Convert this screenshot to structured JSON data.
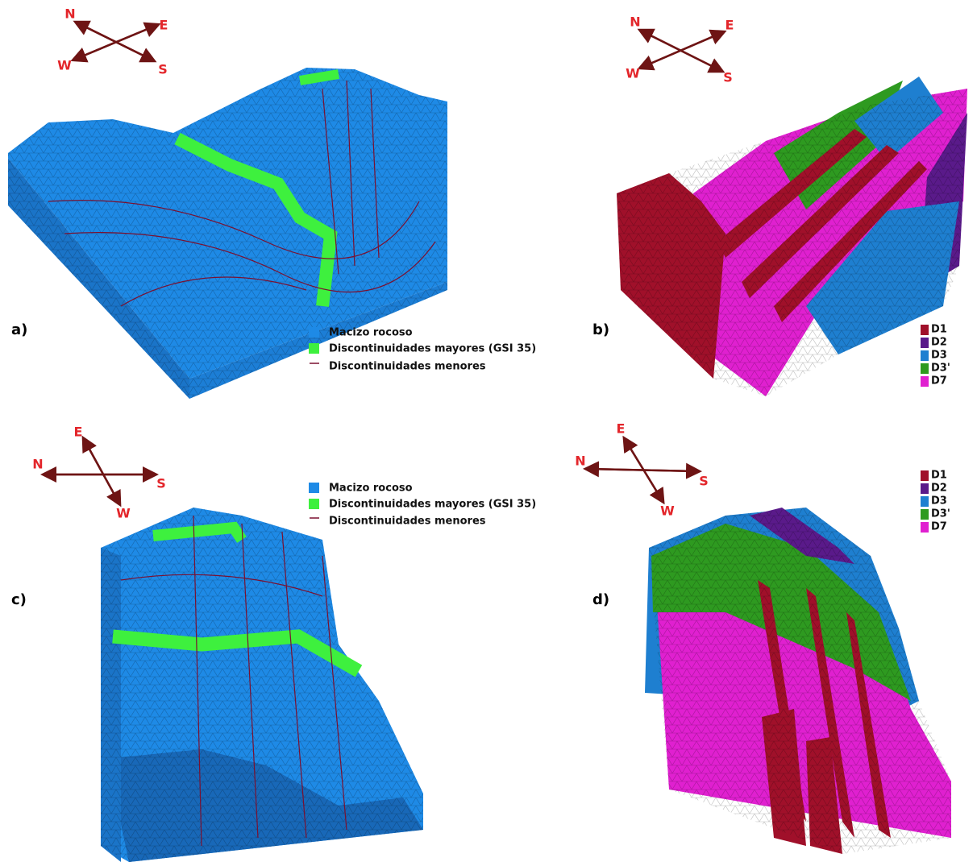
{
  "panels": [
    {
      "label": "a)",
      "compass": [
        "N",
        "E",
        "W",
        "S"
      ],
      "legend": [
        {
          "label": "Macizo rocoso",
          "color": "#1e8ae6"
        },
        {
          "label": "Discontinuidades mayores (GSI 35)",
          "color": "#3ef03e"
        },
        {
          "label": "Discontinuidades menores",
          "color": "#7a1030"
        }
      ]
    },
    {
      "label": "b)",
      "compass": [
        "N",
        "E",
        "W",
        "S"
      ],
      "legend": [
        {
          "label": "D1",
          "color": "#a0102a"
        },
        {
          "label": "D2",
          "color": "#5a1a8a"
        },
        {
          "label": "D3",
          "color": "#1e7fd0"
        },
        {
          "label": "D3'",
          "color": "#2e9a20"
        },
        {
          "label": "D7",
          "color": "#e020d0"
        }
      ]
    },
    {
      "label": "c)",
      "compass": [
        "E",
        "N",
        "S",
        "W"
      ],
      "legend": [
        {
          "label": "Macizo rocoso",
          "color": "#1e8ae6"
        },
        {
          "label": "Discontinuidades mayores (GSI 35)",
          "color": "#3ef03e"
        },
        {
          "label": "Discontinuidades menores",
          "color": "#7a1030"
        }
      ]
    },
    {
      "label": "d)",
      "compass": [
        "E",
        "N",
        "S",
        "W"
      ],
      "legend": [
        {
          "label": "D1",
          "color": "#a0102a"
        },
        {
          "label": "D2",
          "color": "#5a1a8a"
        },
        {
          "label": "D3",
          "color": "#1e7fd0"
        },
        {
          "label": "D3'",
          "color": "#2e9a20"
        },
        {
          "label": "D7",
          "color": "#e020d0"
        }
      ]
    }
  ]
}
